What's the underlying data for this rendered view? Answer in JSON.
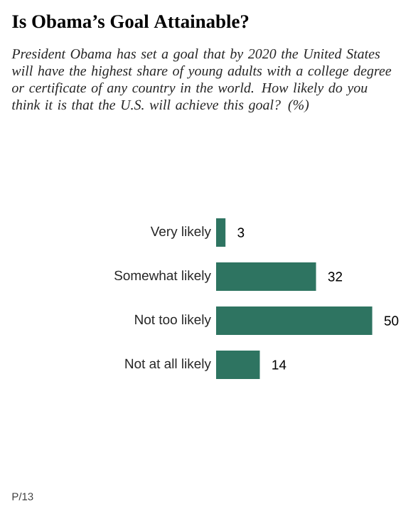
{
  "chart_data": {
    "type": "bar",
    "orientation": "horizontal",
    "title": "Is Obama’s Goal Attainable?",
    "subtitle": "President Obama has set a goal that by 2020 the United States will have the highest share of young adults with a college degree or certificate of any country in the world. How likely do you think it is that the U.S. will achieve this goal? (%)",
    "categories": [
      "Very likely",
      "Somewhat likely",
      "Not too likely",
      "Not at all likely"
    ],
    "values": [
      3,
      32,
      50,
      14
    ],
    "color": "#2e7461",
    "data_labels": true,
    "annotations": [
      "P/13"
    ]
  }
}
